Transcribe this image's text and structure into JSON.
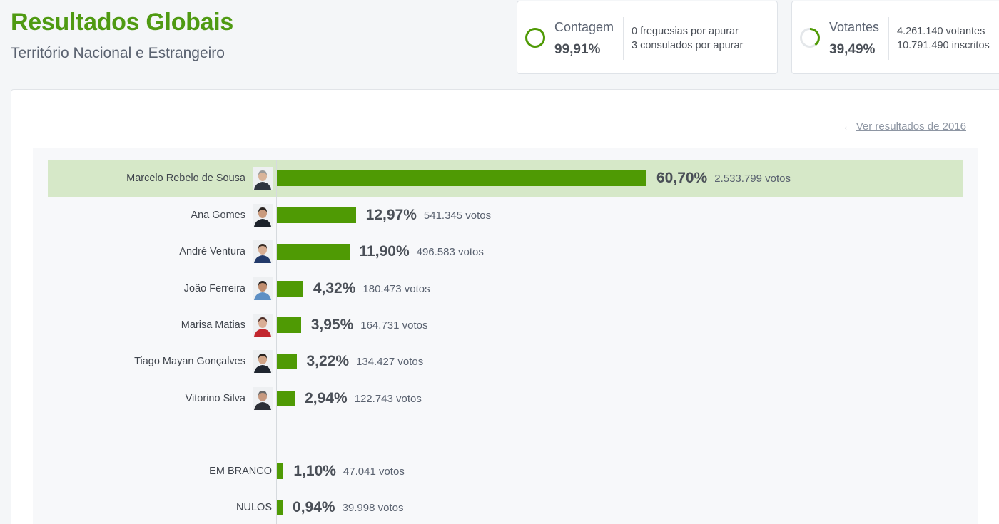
{
  "header": {
    "title": "Resultados Globais",
    "subtitle": "Território Nacional e Estrangeiro"
  },
  "stats": {
    "contagem": {
      "label": "Contagem",
      "value": "99,91%",
      "progress": 0.9991,
      "line1": "0 freguesias por apurar",
      "line2": "3 consulados por apurar"
    },
    "votantes": {
      "label": "Votantes",
      "value": "39,49%",
      "progress": 0.3949,
      "line1": "4.261.140 votantes",
      "line2": "10.791.490 inscritos"
    }
  },
  "prev_link": "Ver resultados de 2016",
  "colors": {
    "accent": "#4f9a04",
    "title": "#4f9a12",
    "highlight": "#d6e8c8"
  },
  "chart_data": {
    "type": "bar",
    "orientation": "horizontal",
    "categories": [
      "Marcelo Rebelo de Sousa",
      "Ana Gomes",
      "André Ventura",
      "João Ferreira",
      "Marisa Matias",
      "Tiago Mayan Gonçalves",
      "Vitorino Silva",
      "EM BRANCO",
      "NULOS"
    ],
    "values": [
      60.7,
      12.97,
      11.9,
      4.32,
      3.95,
      3.22,
      2.94,
      1.1,
      0.94
    ],
    "value_labels": [
      "60,70%",
      "12,97%",
      "11,90%",
      "4,32%",
      "3,95%",
      "3,22%",
      "2,94%",
      "1,10%",
      "0,94%"
    ],
    "votes_labels": [
      "2.533.799 votos",
      "541.345 votos",
      "496.583 votos",
      "180.473 votos",
      "164.731 votos",
      "134.427 votos",
      "122.743 votos",
      "47.041 votos",
      "39.998 votos"
    ],
    "has_photo": [
      true,
      true,
      true,
      true,
      true,
      true,
      true,
      false,
      false
    ],
    "highlighted": "Marcelo Rebelo de Sousa",
    "unit": "%"
  }
}
